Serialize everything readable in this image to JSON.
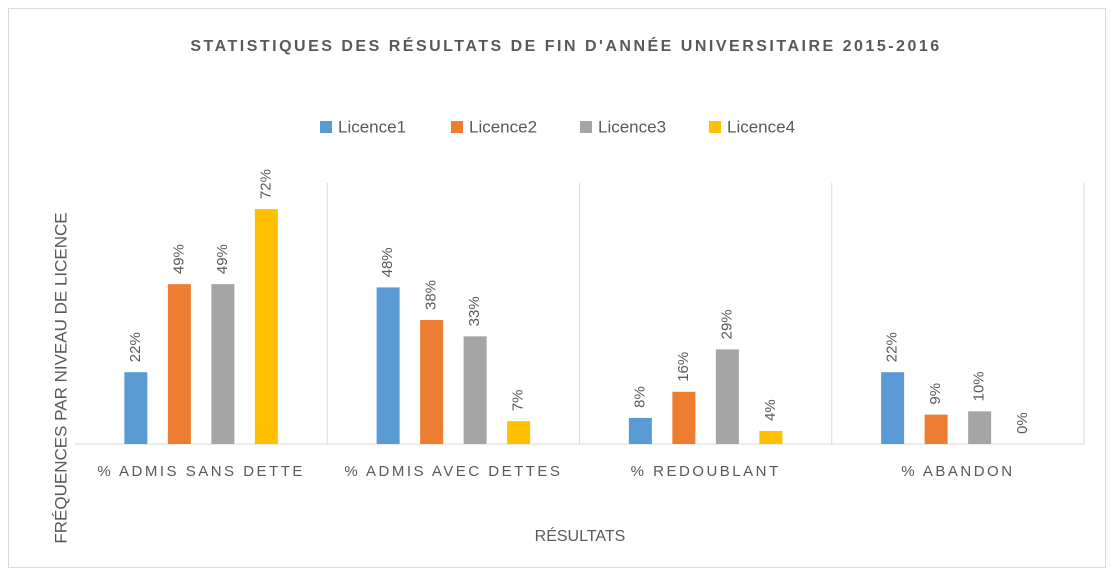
{
  "chart_data": {
    "type": "bar",
    "title": "STATISTIQUES DES RÉSULTATS DE FIN D'ANNÉE UNIVERSITAIRE 2015-2016",
    "x_label": "RÉSULTATS",
    "y_label": "FRÉQUENCES PAR NIVEAU DE LICENCE",
    "categories": [
      "% ADMIS SANS DETTE",
      "% ADMIS AVEC DETTES",
      "% REDOUBLANT",
      "% ABANDON"
    ],
    "series": [
      {
        "name": "Licence1",
        "color": "#5b9bd5",
        "values": [
          22,
          48,
          8,
          22
        ],
        "value_labels": [
          "22%",
          "48%",
          "8%",
          "22%"
        ]
      },
      {
        "name": "Licence2",
        "color": "#ed7d31",
        "values": [
          49,
          38,
          16,
          9
        ],
        "value_labels": [
          "49%",
          "38%",
          "16%",
          "9%"
        ]
      },
      {
        "name": "Licence3",
        "color": "#a5a5a5",
        "values": [
          49,
          33,
          29,
          10
        ],
        "value_labels": [
          "49%",
          "33%",
          "29%",
          "10%"
        ]
      },
      {
        "name": "Licence4",
        "color": "#ffc000",
        "values": [
          72,
          7,
          4,
          0
        ],
        "value_labels": [
          "72%",
          "7%",
          "4%",
          "0%"
        ]
      }
    ],
    "ylim": [
      0,
      80
    ],
    "legend": "top"
  }
}
